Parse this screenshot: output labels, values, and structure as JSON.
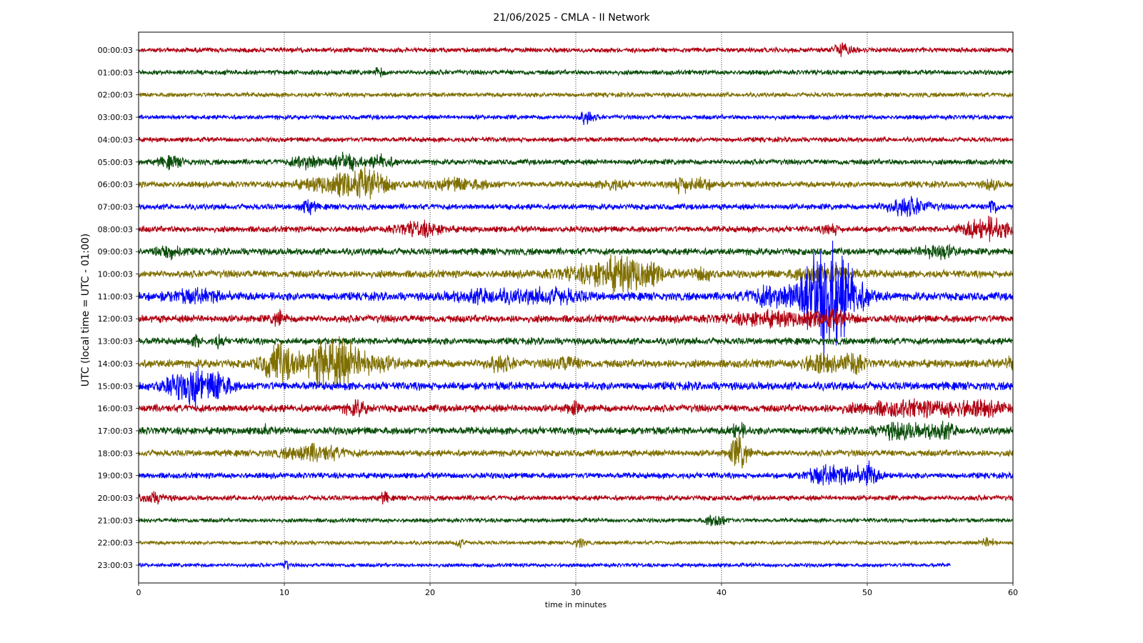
{
  "chart_data": {
    "type": "line",
    "title": "21/06/2025 - CMLA - II Network",
    "xlabel": "time in minutes",
    "ylabel": "UTC (local time = UTC - 01:00)",
    "xlim": [
      0,
      60
    ],
    "xticks": [
      0,
      10,
      20,
      30,
      40,
      50,
      60
    ],
    "grid": "vertical dotted lines at x ticks",
    "color_cycle": [
      "#b00010",
      "#0a4d0a",
      "#7f6f00",
      "#0000ff"
    ],
    "series": [
      {
        "name": "00:00:03",
        "color": "#b00010",
        "amp": 0.7,
        "end": 60,
        "events": [
          {
            "t": 48.2,
            "a": 1.6,
            "d": 0.6
          }
        ]
      },
      {
        "name": "01:00:03",
        "color": "#0a4d0a",
        "amp": 0.7,
        "end": 60,
        "events": [
          {
            "t": 16.5,
            "a": 1.2,
            "d": 0.3
          }
        ]
      },
      {
        "name": "02:00:03",
        "color": "#7f6f00",
        "amp": 0.65,
        "end": 60,
        "events": []
      },
      {
        "name": "03:00:03",
        "color": "#0000ff",
        "amp": 0.65,
        "end": 60,
        "events": [
          {
            "t": 30.7,
            "a": 1.8,
            "d": 0.5
          }
        ]
      },
      {
        "name": "04:00:03",
        "color": "#b00010",
        "amp": 0.7,
        "end": 60,
        "events": []
      },
      {
        "name": "05:00:03",
        "color": "#0a4d0a",
        "amp": 0.8,
        "end": 60,
        "events": [
          {
            "t": 2.2,
            "a": 1.4,
            "d": 0.8
          },
          {
            "t": 11.5,
            "a": 1.8,
            "d": 1.0
          },
          {
            "t": 14.2,
            "a": 2.2,
            "d": 1.0
          },
          {
            "t": 16.7,
            "a": 1.7,
            "d": 0.8
          }
        ]
      },
      {
        "name": "06:00:03",
        "color": "#7f6f00",
        "amp": 0.9,
        "end": 60,
        "events": [
          {
            "t": 14.0,
            "a": 2.6,
            "d": 2.5
          },
          {
            "t": 16.0,
            "a": 2.0,
            "d": 1.5
          },
          {
            "t": 22.0,
            "a": 1.4,
            "d": 2.0
          },
          {
            "t": 32.5,
            "a": 1.3,
            "d": 0.8
          },
          {
            "t": 37.2,
            "a": 1.8,
            "d": 0.6
          },
          {
            "t": 38.5,
            "a": 1.3,
            "d": 1.0
          },
          {
            "t": 58.5,
            "a": 1.3,
            "d": 0.5
          }
        ]
      },
      {
        "name": "07:00:03",
        "color": "#0000ff",
        "amp": 0.85,
        "end": 60,
        "events": [
          {
            "t": 11.6,
            "a": 1.8,
            "d": 0.5
          },
          {
            "t": 52.7,
            "a": 2.3,
            "d": 1.5
          },
          {
            "t": 58.6,
            "a": 2.2,
            "d": 0.3
          }
        ]
      },
      {
        "name": "08:00:03",
        "color": "#b00010",
        "amp": 0.9,
        "end": 60,
        "events": [
          {
            "t": 19.3,
            "a": 1.8,
            "d": 1.5
          },
          {
            "t": 47.5,
            "a": 1.4,
            "d": 0.5
          },
          {
            "t": 58.2,
            "a": 3.0,
            "d": 1.6
          }
        ]
      },
      {
        "name": "09:00:03",
        "color": "#0a4d0a",
        "amp": 1.0,
        "end": 60,
        "events": [
          {
            "t": 2.0,
            "a": 1.5,
            "d": 1.0
          },
          {
            "t": 54.8,
            "a": 1.8,
            "d": 1.2
          }
        ]
      },
      {
        "name": "10:00:03",
        "color": "#7f6f00",
        "amp": 1.1,
        "end": 60,
        "events": [
          {
            "t": 32.0,
            "a": 2.4,
            "d": 3.0
          },
          {
            "t": 33.2,
            "a": 2.6,
            "d": 1.5
          },
          {
            "t": 35.0,
            "a": 1.8,
            "d": 1.0
          },
          {
            "t": 38.8,
            "a": 1.5,
            "d": 0.8
          },
          {
            "t": 47.0,
            "a": 2.0,
            "d": 2.0
          }
        ]
      },
      {
        "name": "11:00:03",
        "color": "#0000ff",
        "amp": 1.2,
        "end": 60,
        "events": [
          {
            "t": 4.0,
            "a": 1.3,
            "d": 2.0
          },
          {
            "t": 24.0,
            "a": 1.4,
            "d": 2.5
          },
          {
            "t": 28.5,
            "a": 1.6,
            "d": 2.0
          },
          {
            "t": 43.3,
            "a": 2.6,
            "d": 1.4
          },
          {
            "t": 46.4,
            "a": 5.5,
            "d": 1.5
          },
          {
            "t": 47.3,
            "a": 8.0,
            "d": 1.5
          },
          {
            "t": 48.4,
            "a": 5.0,
            "d": 1.6
          }
        ]
      },
      {
        "name": "12:00:03",
        "color": "#b00010",
        "amp": 1.1,
        "end": 60,
        "events": [
          {
            "t": 9.6,
            "a": 2.0,
            "d": 0.4
          },
          {
            "t": 43.5,
            "a": 1.6,
            "d": 3.0
          },
          {
            "t": 47.5,
            "a": 1.6,
            "d": 1.5
          }
        ]
      },
      {
        "name": "13:00:03",
        "color": "#0a4d0a",
        "amp": 1.0,
        "end": 60,
        "events": [
          {
            "t": 4.0,
            "a": 1.5,
            "d": 0.3
          },
          {
            "t": 5.5,
            "a": 1.5,
            "d": 0.3
          }
        ]
      },
      {
        "name": "14:00:03",
        "color": "#7f6f00",
        "amp": 1.2,
        "end": 60,
        "events": [
          {
            "t": 9.7,
            "a": 5.0,
            "d": 1.2
          },
          {
            "t": 12.4,
            "a": 3.2,
            "d": 1.2
          },
          {
            "t": 13.5,
            "a": 4.5,
            "d": 1.2
          },
          {
            "t": 15.3,
            "a": 2.8,
            "d": 2.0
          },
          {
            "t": 24.7,
            "a": 1.8,
            "d": 1.0
          },
          {
            "t": 29.3,
            "a": 1.5,
            "d": 1.0
          },
          {
            "t": 46.7,
            "a": 2.2,
            "d": 1.2
          },
          {
            "t": 49.0,
            "a": 2.8,
            "d": 0.7
          },
          {
            "t": 59.8,
            "a": 1.5,
            "d": 0.3
          }
        ]
      },
      {
        "name": "15:00:03",
        "color": "#0000ff",
        "amp": 1.2,
        "end": 60,
        "events": [
          {
            "t": 3.0,
            "a": 2.8,
            "d": 1.5
          },
          {
            "t": 3.9,
            "a": 3.5,
            "d": 0.5
          },
          {
            "t": 5.5,
            "a": 4.0,
            "d": 0.8
          }
        ]
      },
      {
        "name": "16:00:03",
        "color": "#b00010",
        "amp": 1.1,
        "end": 60,
        "events": [
          {
            "t": 14.9,
            "a": 1.7,
            "d": 0.7
          },
          {
            "t": 29.8,
            "a": 1.5,
            "d": 0.4
          },
          {
            "t": 52.5,
            "a": 1.6,
            "d": 3.5
          },
          {
            "t": 57.5,
            "a": 1.5,
            "d": 2.5
          }
        ]
      },
      {
        "name": "17:00:03",
        "color": "#0a4d0a",
        "amp": 1.1,
        "end": 60,
        "events": [
          {
            "t": 8.6,
            "a": 1.6,
            "d": 0.2
          },
          {
            "t": 41.1,
            "a": 2.0,
            "d": 0.5
          },
          {
            "t": 52.2,
            "a": 2.0,
            "d": 1.5
          },
          {
            "t": 55.0,
            "a": 2.0,
            "d": 1.0
          }
        ]
      },
      {
        "name": "18:00:03",
        "color": "#7f6f00",
        "amp": 0.95,
        "end": 60,
        "events": [
          {
            "t": 12.0,
            "a": 2.0,
            "d": 2.0
          },
          {
            "t": 41.2,
            "a": 4.5,
            "d": 0.6
          }
        ]
      },
      {
        "name": "19:00:03",
        "color": "#0000ff",
        "amp": 0.85,
        "end": 60,
        "events": [
          {
            "t": 47.0,
            "a": 2.0,
            "d": 1.2
          },
          {
            "t": 49.2,
            "a": 2.0,
            "d": 1.5
          },
          {
            "t": 50.2,
            "a": 2.2,
            "d": 0.4
          }
        ]
      },
      {
        "name": "20:00:03",
        "color": "#b00010",
        "amp": 0.75,
        "end": 60,
        "events": [
          {
            "t": 1.0,
            "a": 1.2,
            "d": 1.0
          },
          {
            "t": 16.9,
            "a": 1.4,
            "d": 0.3
          }
        ]
      },
      {
        "name": "21:00:03",
        "color": "#0a4d0a",
        "amp": 0.6,
        "end": 60,
        "events": [
          {
            "t": 39.6,
            "a": 1.6,
            "d": 0.7
          }
        ]
      },
      {
        "name": "22:00:03",
        "color": "#7f6f00",
        "amp": 0.55,
        "end": 60,
        "events": [
          {
            "t": 22.0,
            "a": 1.4,
            "d": 0.3
          },
          {
            "t": 30.3,
            "a": 1.4,
            "d": 0.3
          },
          {
            "t": 58.3,
            "a": 1.3,
            "d": 0.5
          }
        ]
      },
      {
        "name": "23:00:03",
        "color": "#0000ff",
        "amp": 0.55,
        "end": 55.7,
        "events": [
          {
            "t": 10.1,
            "a": 1.5,
            "d": 0.2
          }
        ]
      }
    ]
  }
}
